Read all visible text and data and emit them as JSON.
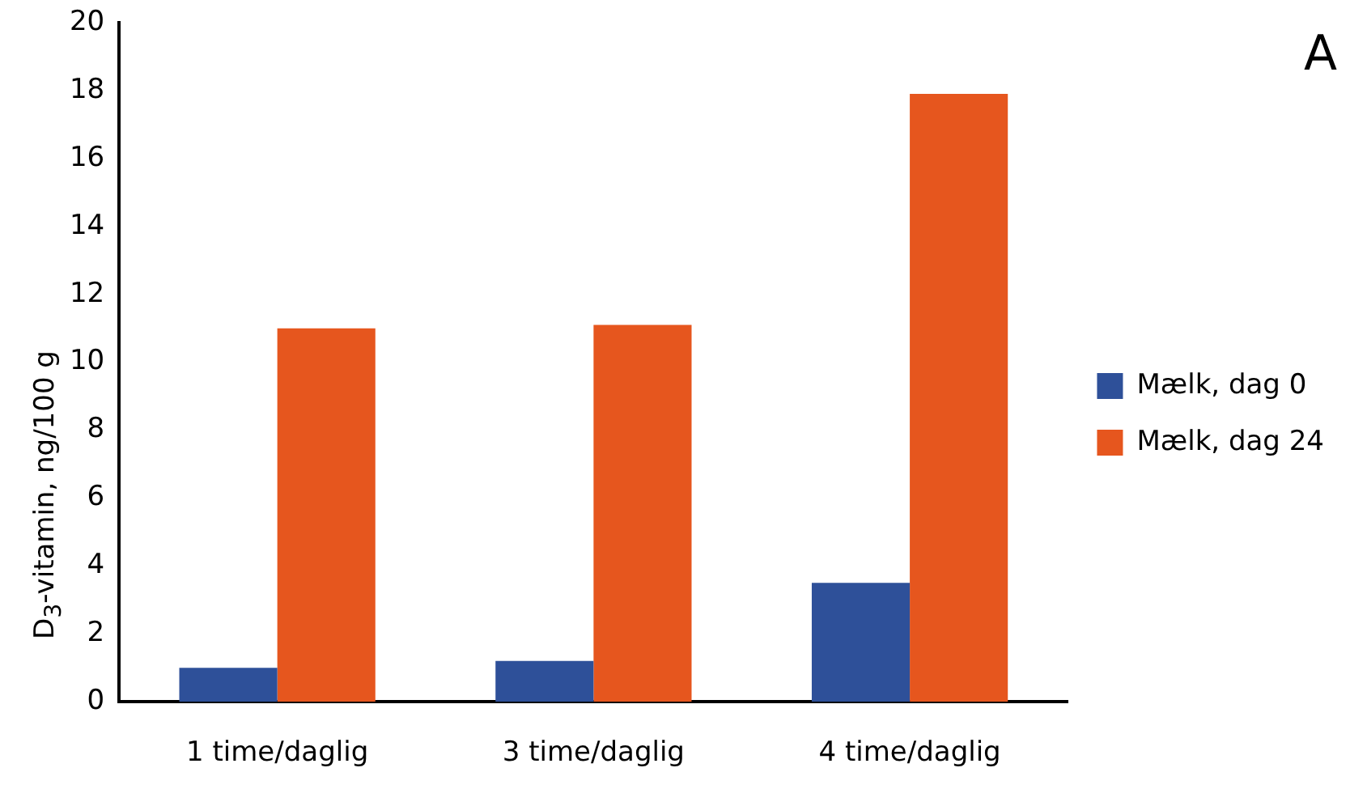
{
  "chart_data": {
    "type": "bar",
    "ylabel": "D$_{3}$-vitamin, ng/100 g",
    "annotations": [
      "A"
    ],
    "categories": [
      "1 time/daglig",
      "3 time/daglig",
      "4 time/daglig"
    ],
    "series": [
      {
        "name": "Mælk, dag 0",
        "color": "#2e5099",
        "values": [
          1.0,
          1.2,
          3.5
        ]
      },
      {
        "name": "Mælk, dag 24",
        "color": "#e6561e",
        "values": [
          11.0,
          11.1,
          17.9
        ]
      }
    ],
    "ylim": [
      0,
      20
    ],
    "yticks": [
      0,
      2,
      4,
      6,
      8,
      10,
      12,
      14,
      16,
      18,
      20
    ],
    "grid": false,
    "legend": "right"
  }
}
